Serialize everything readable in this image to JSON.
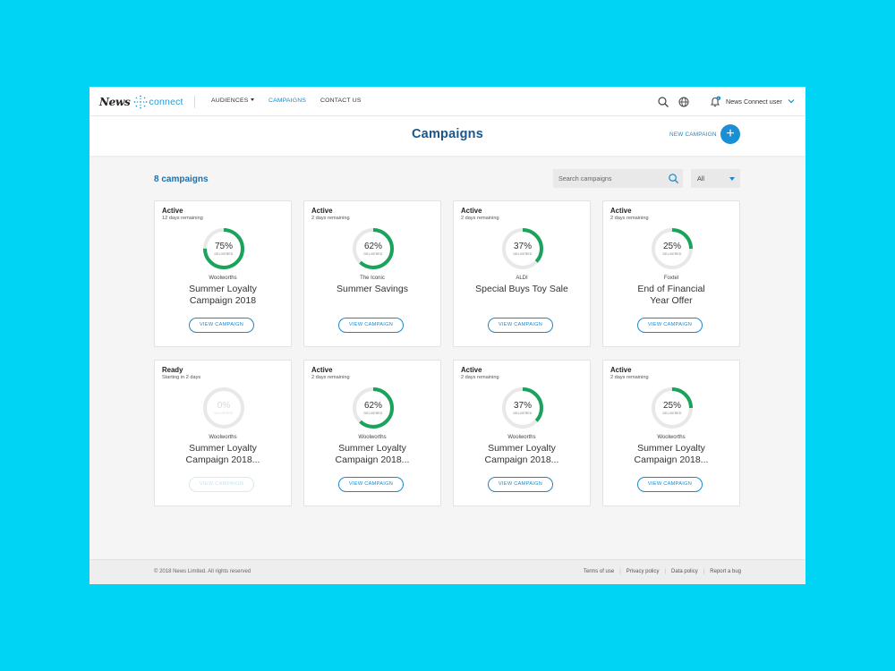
{
  "app": {
    "logo_news": "News",
    "logo_connect": "connect"
  },
  "nav": {
    "items": [
      {
        "label": "AUDIENCES"
      },
      {
        "label": "CAMPAIGNS"
      },
      {
        "label": "CONTACT US"
      }
    ],
    "notification_count": "1",
    "user": "News Connect user"
  },
  "header": {
    "title": "Campaigns",
    "new_campaign_label": "NEW CAMPAIGN",
    "new_campaign_icon": "+"
  },
  "toolbar": {
    "count_label": "8 campaigns",
    "search_placeholder": "Search campaigns",
    "filter_value": "All"
  },
  "colors": {
    "accent": "#1e88c7",
    "ring": "#1aa35a",
    "ring_track": "#e8e8e8",
    "background": "#00d4f5"
  },
  "campaigns": [
    {
      "status": "Active",
      "remaining": "12 days remaining",
      "percent": 75,
      "percent_label": "75%",
      "delivered_label": "DELIVERED",
      "brand": "Woolworths",
      "title_line1": "Summer Loyalty",
      "title_line2": "Campaign 2018",
      "button": "VIEW CAMPAIGN",
      "enabled": true
    },
    {
      "status": "Active",
      "remaining": "2 days remaining",
      "percent": 62,
      "percent_label": "62%",
      "delivered_label": "DELIVERED",
      "brand": "The Iconic",
      "title_line1": "Summer Savings",
      "title_line2": "",
      "button": "VIEW CAMPAIGN",
      "enabled": true
    },
    {
      "status": "Active",
      "remaining": "2 days remaining",
      "percent": 37,
      "percent_label": "37%",
      "delivered_label": "DELIVERED",
      "brand": "ALDI",
      "title_line1": "Special Buys Toy Sale",
      "title_line2": "",
      "button": "VIEW CAMPAIGN",
      "enabled": true
    },
    {
      "status": "Active",
      "remaining": "2 days remaining",
      "percent": 25,
      "percent_label": "25%",
      "delivered_label": "DELIVERED",
      "brand": "Foxtel",
      "title_line1": "End of Financial",
      "title_line2": "Year Offer",
      "button": "VIEW CAMPAIGN",
      "enabled": true
    },
    {
      "status": "Ready",
      "remaining": "Starting in 2 days",
      "percent": 0,
      "percent_label": "0%",
      "delivered_label": "DELIVERED",
      "brand": "Woolworths",
      "title_line1": "Summer Loyalty",
      "title_line2": "Campaign 2018...",
      "button": "VIEW CAMPAIGN",
      "enabled": false
    },
    {
      "status": "Active",
      "remaining": "2 days remaining",
      "percent": 62,
      "percent_label": "62%",
      "delivered_label": "DELIVERED",
      "brand": "Woolworths",
      "title_line1": "Summer Loyalty",
      "title_line2": "Campaign 2018...",
      "button": "VIEW CAMPAIGN",
      "enabled": true
    },
    {
      "status": "Active",
      "remaining": "2 days remaining",
      "percent": 37,
      "percent_label": "37%",
      "delivered_label": "DELIVERED",
      "brand": "Woolworths",
      "title_line1": "Summer Loyalty",
      "title_line2": "Campaign 2018...",
      "button": "VIEW CAMPAIGN",
      "enabled": true
    },
    {
      "status": "Active",
      "remaining": "2 days remaining",
      "percent": 25,
      "percent_label": "25%",
      "delivered_label": "DELIVERED",
      "brand": "Woolworths",
      "title_line1": "Summer Loyalty",
      "title_line2": "Campaign 2018...",
      "button": "VIEW CAMPAIGN",
      "enabled": true
    }
  ],
  "footer": {
    "copyright": "© 2018 News Limited. All rights reserved",
    "links": [
      "Terms of use",
      "Privacy policy",
      "Data policy",
      "Report a bug"
    ]
  }
}
